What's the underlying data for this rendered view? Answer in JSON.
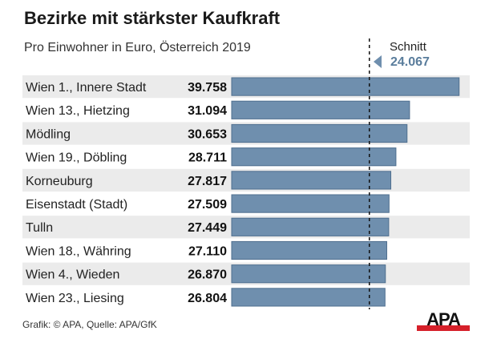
{
  "chart_data": {
    "type": "bar",
    "orientation": "horizontal",
    "title": "Bezirke mit stärkster Kaufkraft",
    "subtitle": "Pro Einwohner in Euro, Österreich 2019",
    "categories": [
      "Wien 1., Innere Stadt",
      "Wien 13., Hietzing",
      "Mödling",
      "Wien 19., Döbling",
      "Korneuburg",
      "Eisenstadt (Stadt)",
      "Tulln",
      "Wien 18., Währing",
      "Wien 4., Wieden",
      "Wien 23., Liesing"
    ],
    "values": [
      39758,
      31094,
      30653,
      28711,
      27817,
      27509,
      27449,
      27110,
      26870,
      26804
    ],
    "value_labels": [
      "39.758",
      "31.094",
      "30.653",
      "28.711",
      "27.817",
      "27.509",
      "27.449",
      "27.110",
      "26.870",
      "26.804"
    ],
    "reference_line": {
      "label": "Schnitt",
      "value": 24067,
      "value_label": "24.067"
    },
    "xlim": [
      0,
      40000
    ],
    "grid": false,
    "bar_color": "#6f8fae",
    "row_stripe_color": "#ebebeb"
  },
  "footer": {
    "source": "Grafik: © APA, Quelle: APA/GfK",
    "logo": "APA",
    "logo_color": "#d6202a"
  }
}
